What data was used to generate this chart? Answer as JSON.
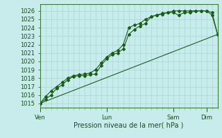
{
  "xlabel": "Pression niveau de la mer( hPa )",
  "bg_color": "#c8ecec",
  "grid_color": "#b0d8d8",
  "line_color": "#1a5c1a",
  "ylim": [
    1014.5,
    1026.8
  ],
  "yticks": [
    1015,
    1016,
    1017,
    1018,
    1019,
    1020,
    1021,
    1022,
    1023,
    1024,
    1025,
    1026
  ],
  "xtick_labels": [
    "Ven",
    "Lun",
    "Sam",
    "Dim"
  ],
  "xtick_pos": [
    0.0,
    0.375,
    0.75,
    0.9375
  ],
  "xlim": [
    0,
    1.0
  ],
  "line1_x": [
    0.0,
    0.031,
    0.063,
    0.094,
    0.125,
    0.156,
    0.188,
    0.219,
    0.25,
    0.281,
    0.313,
    0.344,
    0.375,
    0.406,
    0.438,
    0.469,
    0.5,
    0.531,
    0.563,
    0.594,
    0.625,
    0.656,
    0.688,
    0.719,
    0.75,
    0.781,
    0.813,
    0.844,
    0.875,
    0.906,
    0.938,
    0.969,
    1.0
  ],
  "line1_y": [
    1015.0,
    1015.5,
    1016.0,
    1016.8,
    1017.2,
    1017.8,
    1018.2,
    1018.3,
    1018.3,
    1018.4,
    1018.5,
    1019.5,
    1020.3,
    1020.8,
    1021.0,
    1021.5,
    1023.2,
    1023.8,
    1024.2,
    1024.5,
    1025.3,
    1025.5,
    1025.7,
    1025.8,
    1026.0,
    1026.0,
    1026.0,
    1026.0,
    1026.0,
    1026.0,
    1026.0,
    1025.8,
    1023.2
  ],
  "line2_x": [
    0.0,
    0.031,
    0.063,
    0.094,
    0.125,
    0.156,
    0.188,
    0.219,
    0.25,
    0.281,
    0.313,
    0.344,
    0.375,
    0.406,
    0.438,
    0.469,
    0.5,
    0.531,
    0.563,
    0.594,
    0.625,
    0.656,
    0.688,
    0.719,
    0.75,
    0.781,
    0.813,
    0.844,
    0.875,
    0.906,
    0.938,
    0.969,
    1.0
  ],
  "line2_y": [
    1015.0,
    1015.8,
    1016.5,
    1017.0,
    1017.5,
    1018.0,
    1018.3,
    1018.4,
    1018.5,
    1018.6,
    1019.0,
    1019.8,
    1020.5,
    1021.0,
    1021.3,
    1022.0,
    1024.0,
    1024.3,
    1024.5,
    1025.0,
    1025.3,
    1025.5,
    1025.6,
    1025.8,
    1025.8,
    1025.5,
    1025.8,
    1025.8,
    1026.0,
    1026.0,
    1026.0,
    1025.5,
    1023.2
  ],
  "line3_x": [
    0.0,
    1.0
  ],
  "line3_y": [
    1015.0,
    1023.2
  ],
  "figsize": [
    3.2,
    2.0
  ],
  "dpi": 100
}
